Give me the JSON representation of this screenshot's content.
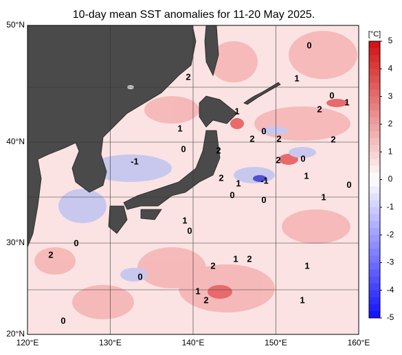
{
  "title": "10-day mean SST anomalies for 11-20 May 2025.",
  "lat_labels": [
    "50°N",
    "40°N",
    "30°N",
    "20°N"
  ],
  "lon_labels": [
    "120°E",
    "130°E",
    "140°E",
    "150°E",
    "160°E"
  ],
  "colorbar": {
    "unit": "[°C]",
    "ticks": [
      5,
      4,
      3,
      2,
      1,
      0,
      -1,
      -2,
      -3,
      -4,
      -5
    ]
  },
  "contour_labels": [
    "2",
    "1",
    "0",
    "0",
    "1",
    "2",
    "1",
    "1",
    "0",
    "2",
    "2",
    "2",
    "0",
    "2",
    "-1",
    "2",
    "0",
    "2",
    "1",
    "-1",
    "1",
    "0",
    "0",
    "0",
    "1",
    "1",
    "0",
    "0",
    "2",
    "1",
    "2",
    "2",
    "1",
    "0",
    "1",
    "2",
    "1",
    "0"
  ]
}
